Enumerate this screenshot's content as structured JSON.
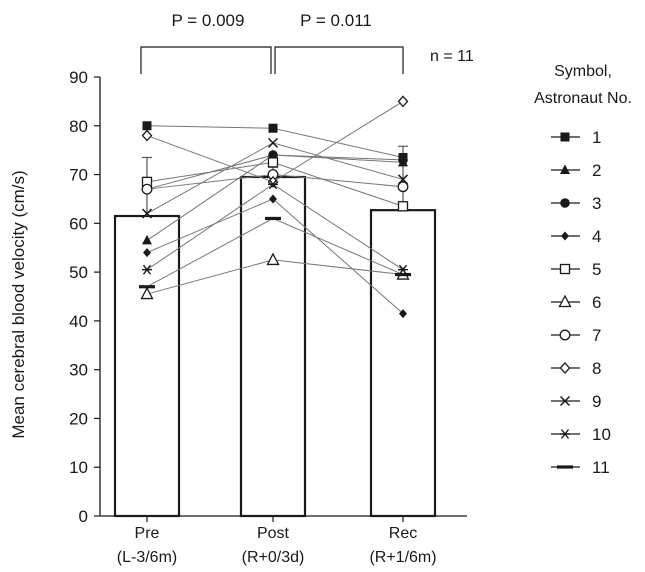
{
  "chart_data": {
    "type": "bar",
    "title": "",
    "ylabel": "Mean cerebral blood velocity (cm/s)",
    "xlabel": "",
    "ylim": [
      0,
      90
    ],
    "yticks": [
      0,
      10,
      20,
      30,
      40,
      50,
      60,
      70,
      80,
      90
    ],
    "categories": [
      {
        "name": "Pre",
        "sub": "(L-3/6m)"
      },
      {
        "name": "Post",
        "sub": "(R+0/3d)"
      },
      {
        "name": "Rec",
        "sub": "(R+1/6m)"
      }
    ],
    "means": [
      61.5,
      69.5,
      62.7
    ],
    "error_upper": [
      73.5,
      71.5,
      75.8
    ],
    "significance": [
      {
        "from": 0,
        "to": 1,
        "label": "P = 0.009"
      },
      {
        "from": 1,
        "to": 2,
        "label": "P = 0.011"
      }
    ],
    "n_label": "n = 11",
    "legend_title": [
      "Symbol,",
      "Astronaut No."
    ],
    "legend_placement": "right",
    "series": [
      {
        "name": "1",
        "marker": "square-filled",
        "values": [
          80,
          79.5,
          73.5
        ]
      },
      {
        "name": "2",
        "marker": "triangle-filled",
        "values": [
          56.5,
          74,
          72.5
        ]
      },
      {
        "name": "3",
        "marker": "circle-filled",
        "values": [
          67,
          74,
          73
        ]
      },
      {
        "name": "4",
        "marker": "diamond-filled",
        "values": [
          54,
          65,
          41.5
        ]
      },
      {
        "name": "5",
        "marker": "square-open",
        "values": [
          68.5,
          72.5,
          63.5
        ]
      },
      {
        "name": "6",
        "marker": "triangle-open",
        "values": [
          45.5,
          52.5,
          49.5
        ]
      },
      {
        "name": "7",
        "marker": "circle-open",
        "values": [
          67,
          70,
          67.5
        ]
      },
      {
        "name": "8",
        "marker": "diamond-open",
        "values": [
          78,
          68.5,
          85
        ]
      },
      {
        "name": "9",
        "marker": "x",
        "values": [
          62,
          76.5,
          69
        ]
      },
      {
        "name": "10",
        "marker": "asterisk",
        "values": [
          50.5,
          68,
          50.5
        ]
      },
      {
        "name": "11",
        "marker": "dash",
        "values": [
          47,
          61,
          49.5
        ]
      }
    ]
  }
}
